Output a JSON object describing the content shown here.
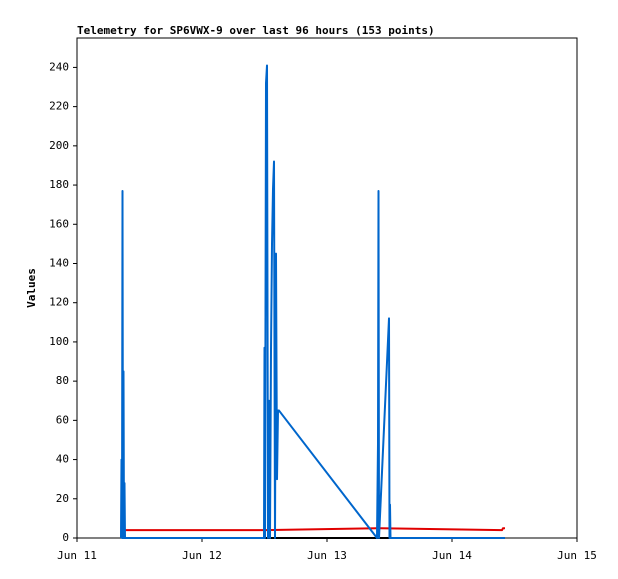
{
  "chart_data": {
    "type": "line",
    "title": "Telemetry for SP6VWX-9 over last 96 hours (153 points)",
    "y_label": "Values",
    "xlim": [
      0,
      4
    ],
    "xticks": [
      {
        "value": 0,
        "label": "Jun 11"
      },
      {
        "value": 1,
        "label": "Jun 12"
      },
      {
        "value": 2,
        "label": "Jun 13"
      },
      {
        "value": 3,
        "label": "Jun 14"
      },
      {
        "value": 4,
        "label": "Jun 15"
      }
    ],
    "ylim": [
      0,
      255
    ],
    "yticks": [
      0,
      20,
      40,
      60,
      80,
      100,
      120,
      140,
      160,
      180,
      200,
      220,
      240
    ],
    "series": [
      {
        "color": "#000000",
        "x": [
          0.36,
          3.424
        ],
        "values": [
          0,
          0
        ]
      },
      {
        "color": "#e00000",
        "x": [
          0.384,
          1.5,
          2.4,
          3.4,
          3.408,
          3.424
        ],
        "values": [
          4,
          4,
          5,
          4,
          5,
          5
        ]
      },
      {
        "color": "#0066cc",
        "x": [
          0.352,
          0.356,
          0.36,
          0.364,
          0.368,
          0.372,
          0.376,
          0.38,
          0.384,
          1.496,
          1.5,
          1.504,
          1.512,
          1.52,
          1.528,
          1.536,
          1.544,
          1.552,
          1.56,
          1.568,
          1.576,
          1.584,
          1.592,
          1.6,
          1.608,
          1.616,
          2.4,
          2.408,
          2.412,
          2.416,
          2.496,
          2.5,
          2.504,
          2.508,
          3.424
        ],
        "values": [
          0,
          40,
          0,
          177,
          0,
          85,
          0,
          28,
          0,
          0,
          97,
          0,
          232,
          241,
          0,
          70,
          0,
          96,
          150,
          178,
          192,
          0,
          145,
          30,
          65,
          65,
          0,
          48,
          177,
          0,
          112,
          0,
          17,
          0,
          0
        ]
      }
    ]
  }
}
